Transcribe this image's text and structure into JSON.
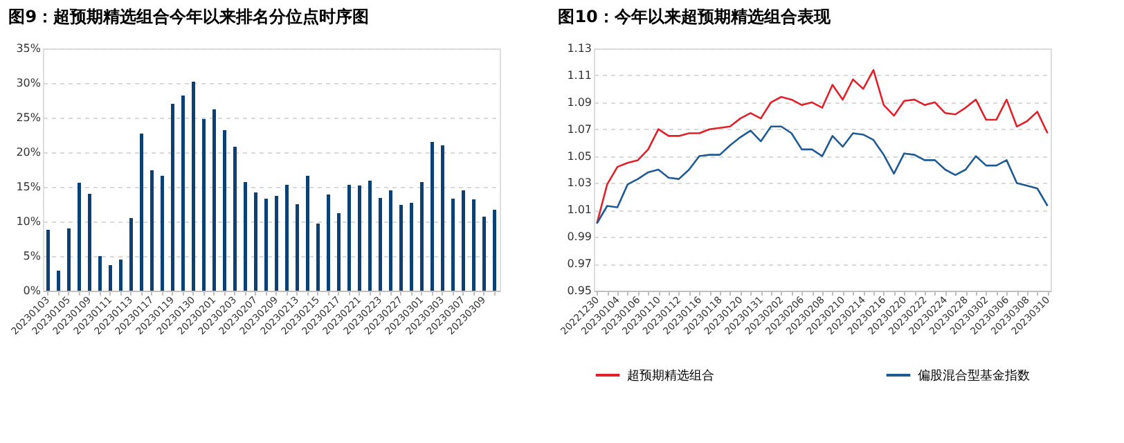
{
  "chart_data": [
    {
      "type": "bar",
      "title": "图9：超预期精选组合今年以来排名分位点时序图",
      "categories": [
        "20230103",
        null,
        "20230105",
        null,
        "20230109",
        null,
        "20230111",
        null,
        "20230113",
        null,
        "20230117",
        null,
        "20230119",
        null,
        "20230130",
        null,
        "20230201",
        null,
        "20230203",
        null,
        "20230207",
        null,
        "20230209",
        null,
        "20230213",
        null,
        "20230215",
        null,
        "20230217",
        null,
        "20230221",
        null,
        "20230223",
        null,
        "20230227",
        null,
        "20230301",
        null,
        "20230303",
        null,
        "20230307",
        null,
        "20230309",
        null
      ],
      "values": [
        8.8,
        2.9,
        9.0,
        15.6,
        14.0,
        5.0,
        3.7,
        4.5,
        10.5,
        22.7,
        17.4,
        16.6,
        27.0,
        28.2,
        30.2,
        24.8,
        26.2,
        23.2,
        20.8,
        15.7,
        14.2,
        13.3,
        13.7,
        15.3,
        12.5,
        16.6,
        9.7,
        13.9,
        11.2,
        15.3,
        15.2,
        15.9,
        13.4,
        14.5,
        12.4,
        12.7,
        15.7,
        21.5,
        21.0,
        13.3,
        14.5,
        13.2,
        10.7,
        11.7
      ],
      "color": "#0b4174",
      "ylim": [
        0,
        35
      ],
      "yticks": [
        {
          "value": 0,
          "label": "0%"
        },
        {
          "value": 5,
          "label": "5%"
        },
        {
          "value": 10,
          "label": "10%"
        },
        {
          "value": 15,
          "label": "15%"
        },
        {
          "value": 20,
          "label": "20%"
        },
        {
          "value": 25,
          "label": "25%"
        },
        {
          "value": 30,
          "label": "30%"
        },
        {
          "value": 35,
          "label": "35%"
        }
      ],
      "grid": "y",
      "legend": false
    },
    {
      "type": "line",
      "title": "图10：今年以来超预期精选组合表现",
      "categories": [
        "20221230",
        null,
        "20230104",
        null,
        "20230106",
        null,
        "20230110",
        null,
        "20230112",
        null,
        "20230116",
        null,
        "20230118",
        null,
        "20230120",
        null,
        "20230131",
        null,
        "20230202",
        null,
        "20230206",
        null,
        "20230208",
        null,
        "20230210",
        null,
        "20230214",
        null,
        "20230216",
        null,
        "20230220",
        null,
        "20230222",
        null,
        "20230224",
        null,
        "20230228",
        null,
        "20230302",
        null,
        "20230306",
        null,
        "20230308",
        null,
        "20230310"
      ],
      "series": [
        {
          "name": "超预期精选组合",
          "color": "#e0202a",
          "values": [
            1.0,
            1.029,
            1.042,
            1.045,
            1.047,
            1.055,
            1.07,
            1.065,
            1.065,
            1.067,
            1.067,
            1.07,
            1.071,
            1.072,
            1.078,
            1.082,
            1.078,
            1.09,
            1.094,
            1.092,
            1.088,
            1.09,
            1.086,
            1.103,
            1.092,
            1.107,
            1.1,
            1.114,
            1.088,
            1.08,
            1.091,
            1.092,
            1.088,
            1.09,
            1.082,
            1.081,
            1.086,
            1.092,
            1.077,
            1.077,
            1.092,
            1.072,
            1.076,
            1.083,
            1.067
          ]
        },
        {
          "name": "偏股混合型基金指数",
          "color": "#1f5b92",
          "values": [
            1.0,
            1.013,
            1.012,
            1.029,
            1.033,
            1.038,
            1.04,
            1.034,
            1.033,
            1.04,
            1.05,
            1.051,
            1.051,
            1.058,
            1.064,
            1.069,
            1.061,
            1.072,
            1.072,
            1.067,
            1.055,
            1.055,
            1.05,
            1.065,
            1.057,
            1.067,
            1.066,
            1.062,
            1.051,
            1.037,
            1.052,
            1.051,
            1.047,
            1.047,
            1.04,
            1.036,
            1.04,
            1.05,
            1.043,
            1.043,
            1.047,
            1.03,
            1.028,
            1.026,
            1.013
          ]
        }
      ],
      "ylim": [
        0.95,
        1.13
      ],
      "yticks": [
        {
          "value": 0.95,
          "label": "0.95"
        },
        {
          "value": 0.97,
          "label": "0.97"
        },
        {
          "value": 0.99,
          "label": "0.99"
        },
        {
          "value": 1.01,
          "label": "1.01"
        },
        {
          "value": 1.03,
          "label": "1.03"
        },
        {
          "value": 1.05,
          "label": "1.05"
        },
        {
          "value": 1.07,
          "label": "1.07"
        },
        {
          "value": 1.09,
          "label": "1.09"
        },
        {
          "value": 1.11,
          "label": "1.11"
        },
        {
          "value": 1.13,
          "label": "1.13"
        }
      ],
      "grid": "y",
      "legend": "bottom",
      "marker": "none",
      "line_style": "solid"
    }
  ]
}
